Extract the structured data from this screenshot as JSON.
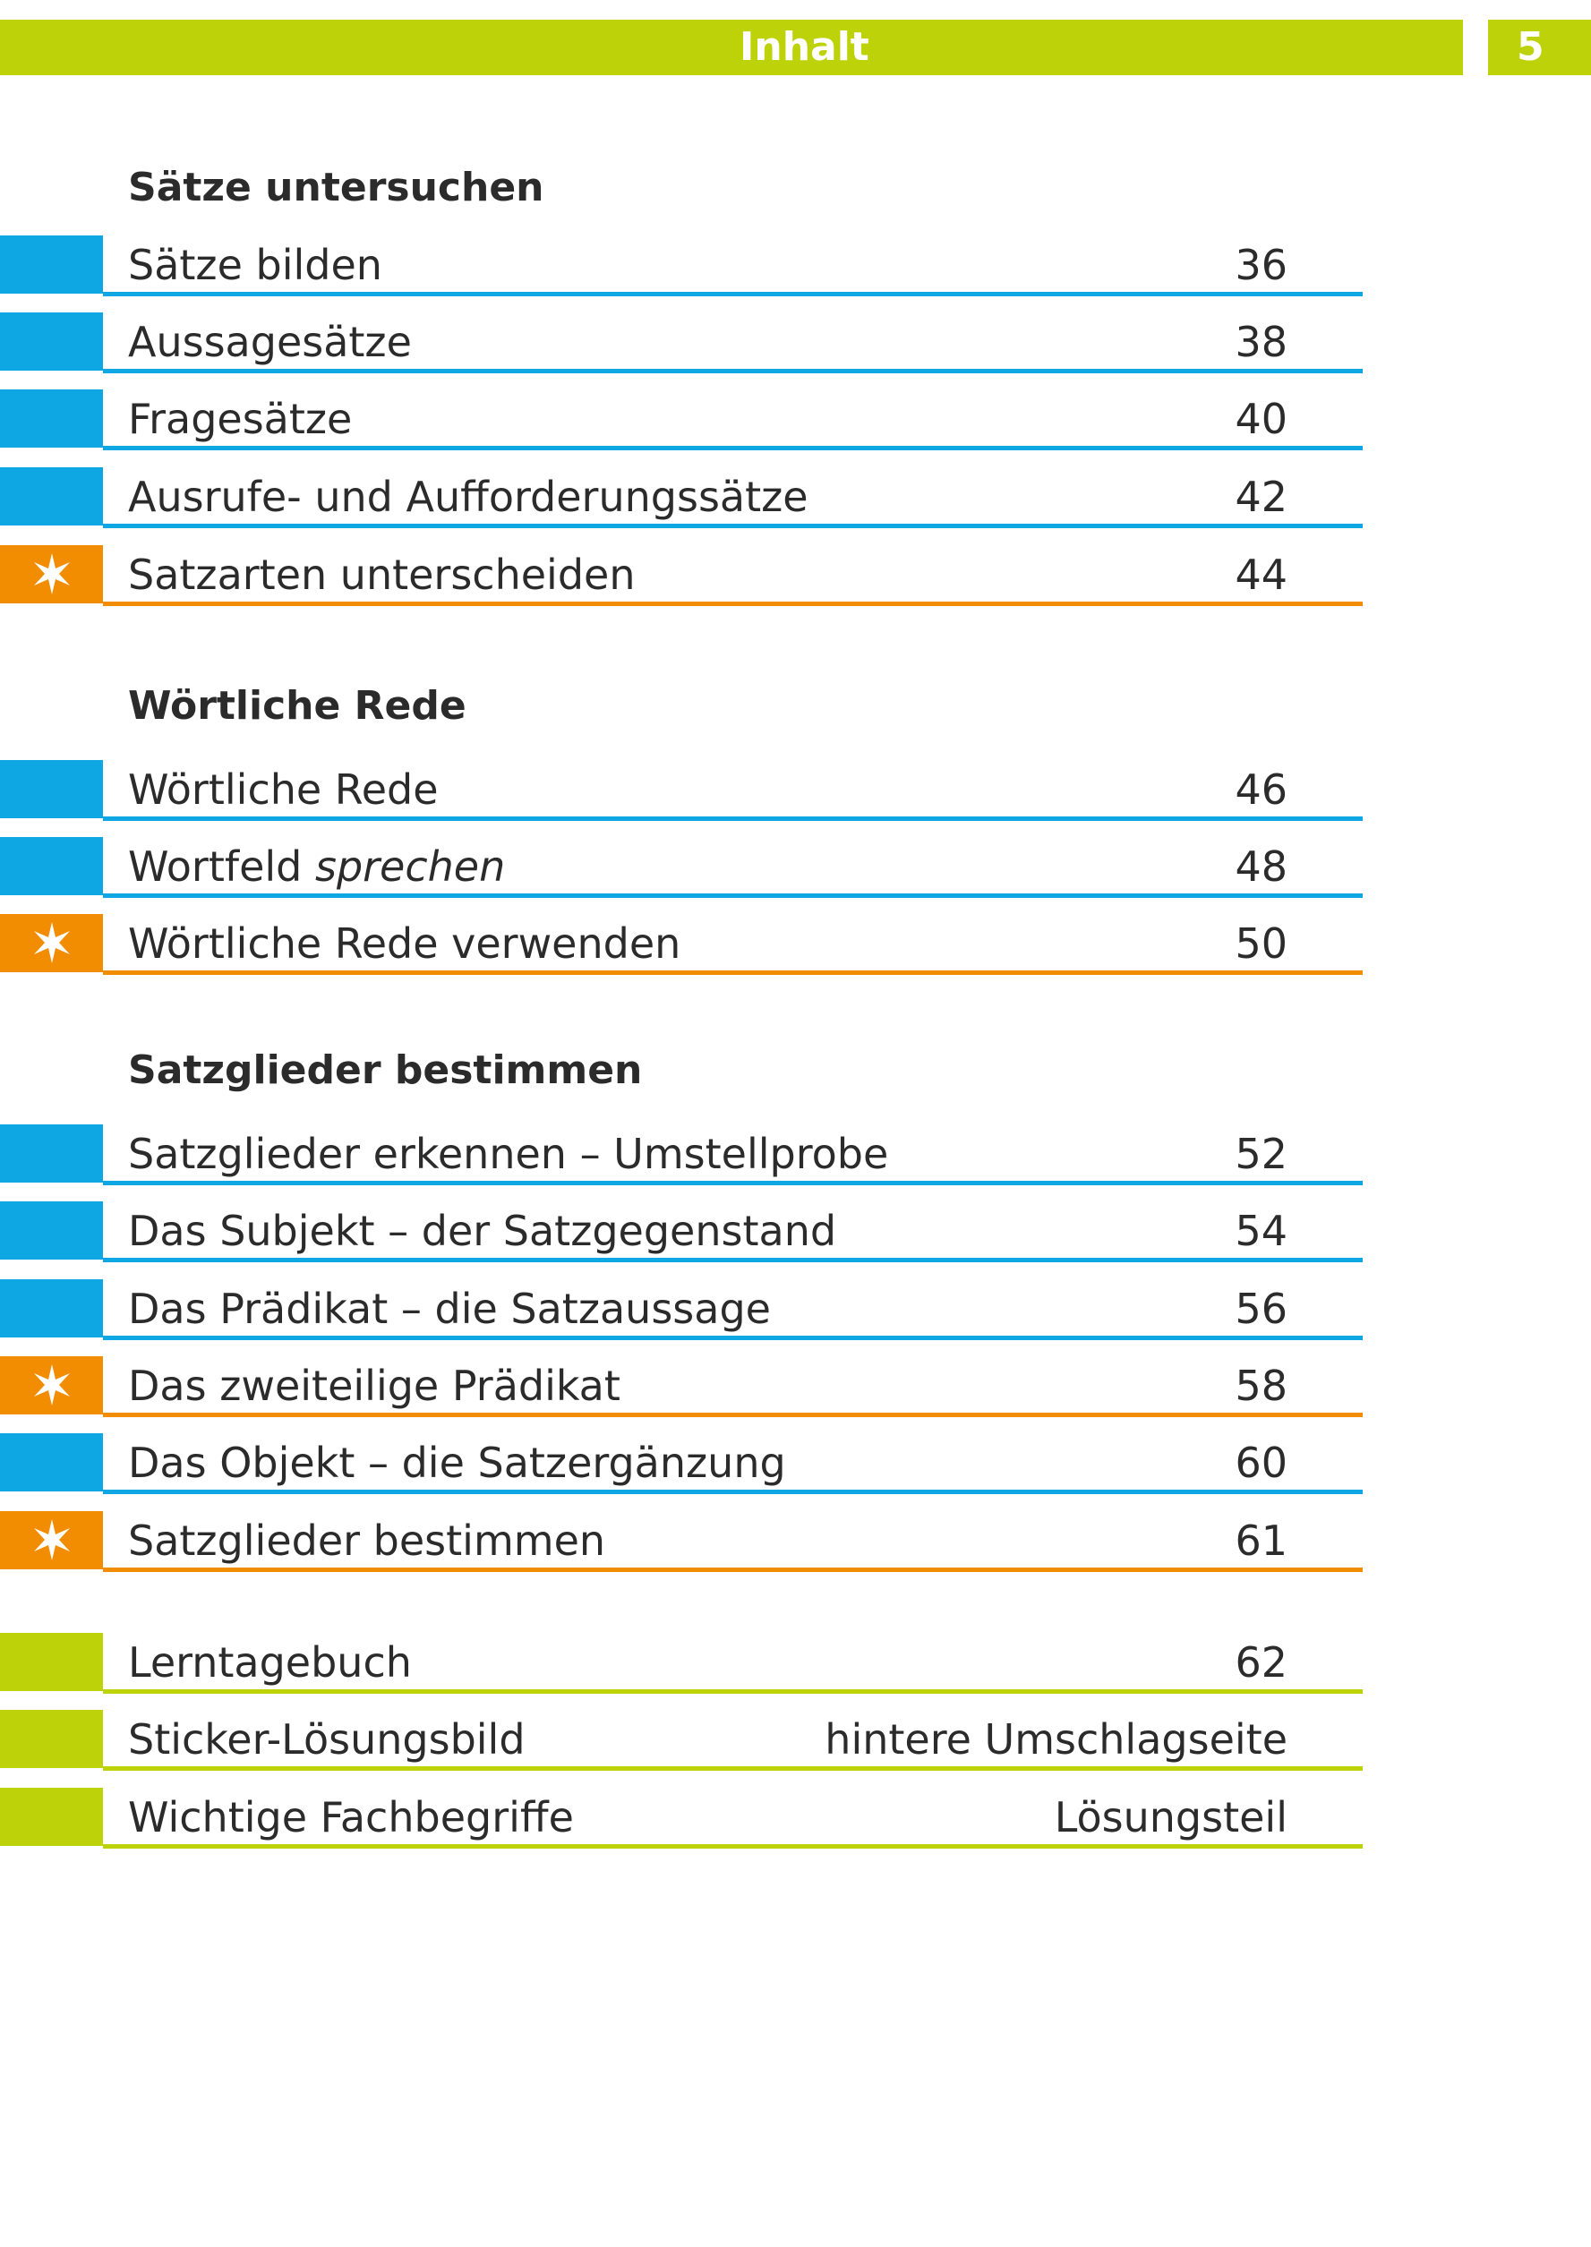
{
  "header": {
    "title": "Inhalt",
    "page_number": "5"
  },
  "colors": {
    "blue": "#0fa6e4",
    "orange": "#f28c00",
    "green": "#bed20a",
    "star_icon": "star-icon"
  },
  "sections": [
    {
      "title": "Sätze untersuchen",
      "items": [
        {
          "label": "Sätze bilden",
          "page": "36",
          "color": "blue"
        },
        {
          "label": "Aussagesätze",
          "page": "38",
          "color": "blue"
        },
        {
          "label": "Fragesätze",
          "page": "40",
          "color": "blue"
        },
        {
          "label": "Ausrufe- und Aufforderungssätze",
          "page": "42",
          "color": "blue"
        },
        {
          "label": "Satzarten unterscheiden",
          "page": "44",
          "color": "orange",
          "star": true
        }
      ]
    },
    {
      "title": "Wörtliche Rede",
      "items": [
        {
          "label": "Wörtliche Rede",
          "page": "46",
          "color": "blue"
        },
        {
          "label_prefix": "Wortfeld ",
          "label_italic": "sprechen",
          "page": "48",
          "color": "blue"
        },
        {
          "label": "Wörtliche Rede verwenden",
          "page": "50",
          "color": "orange",
          "star": true
        }
      ]
    },
    {
      "title": "Satzglieder bestimmen",
      "items": [
        {
          "label": "Satzglieder erkennen – Umstellprobe",
          "page": "52",
          "color": "blue"
        },
        {
          "label": "Das Subjekt – der Satzgegenstand",
          "page": "54",
          "color": "blue"
        },
        {
          "label": "Das Prädikat – die Satzaussage",
          "page": "56",
          "color": "blue"
        },
        {
          "label": "Das zweiteilige Prädikat",
          "page": "58",
          "color": "orange",
          "star": true
        },
        {
          "label": "Das Objekt – die Satzergänzung",
          "page": "60",
          "color": "blue"
        },
        {
          "label": "Satzglieder bestimmen",
          "page": "61",
          "color": "orange",
          "star": true
        }
      ]
    }
  ],
  "extras": [
    {
      "label": "Lerntagebuch",
      "page": "62",
      "color": "green"
    },
    {
      "label": "Sticker-Lösungsbild",
      "page": "hintere Umschlagseite",
      "color": "green"
    },
    {
      "label": "Wichtige Fachbegriffe",
      "page": "Lösungsteil",
      "color": "green"
    }
  ]
}
